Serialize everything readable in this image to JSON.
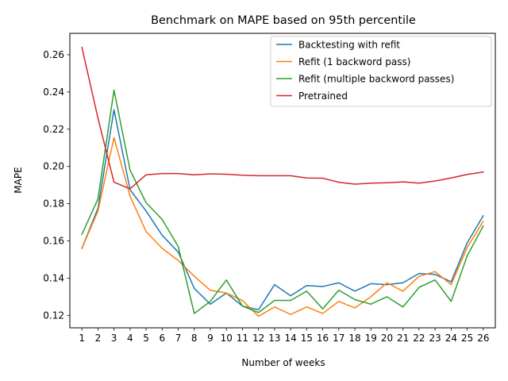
{
  "chart_data": {
    "type": "line",
    "title": "Benchmark on MAPE based on 95th percentile",
    "xlabel": "Number of weeks",
    "ylabel": "MAPE",
    "x": [
      1,
      2,
      3,
      4,
      5,
      6,
      7,
      8,
      9,
      10,
      11,
      12,
      13,
      14,
      15,
      16,
      17,
      18,
      19,
      20,
      21,
      22,
      23,
      24,
      25,
      26
    ],
    "xlim": [
      0.25,
      26.75
    ],
    "ylim": [
      0.1133,
      0.2715
    ],
    "yticks": [
      0.12,
      0.14,
      0.16,
      0.18,
      0.2,
      0.22,
      0.24,
      0.26
    ],
    "ytick_labels": [
      "0.12",
      "0.14",
      "0.16",
      "0.18",
      "0.20",
      "0.22",
      "0.24",
      "0.26"
    ],
    "grid": false,
    "legend_position": "top-right",
    "series": [
      {
        "name": "Backtesting with refit",
        "color": "#1f77b4",
        "values": [
          0.156,
          0.1775,
          0.2305,
          0.1875,
          0.176,
          0.163,
          0.154,
          0.1345,
          0.126,
          0.132,
          0.125,
          0.123,
          0.1365,
          0.1305,
          0.136,
          0.1355,
          0.1375,
          0.133,
          0.137,
          0.1365,
          0.1375,
          0.1425,
          0.142,
          0.138,
          0.159,
          0.1735
        ]
      },
      {
        "name": "Refit (1 backword pass)",
        "color": "#ff7f0e",
        "values": [
          0.156,
          0.176,
          0.2155,
          0.184,
          0.165,
          0.156,
          0.1495,
          0.141,
          0.1335,
          0.132,
          0.128,
          0.1195,
          0.1245,
          0.1205,
          0.1245,
          0.121,
          0.1275,
          0.124,
          0.13,
          0.1375,
          0.133,
          0.141,
          0.1435,
          0.1365,
          0.1565,
          0.1705
        ]
      },
      {
        "name": "Refit (multiple backword passes)",
        "color": "#2ca02c",
        "values": [
          0.1635,
          0.1825,
          0.241,
          0.198,
          0.1805,
          0.1715,
          0.157,
          0.121,
          0.1275,
          0.139,
          0.125,
          0.1215,
          0.128,
          0.128,
          0.133,
          0.1235,
          0.1335,
          0.1285,
          0.126,
          0.13,
          0.1245,
          0.135,
          0.139,
          0.1275,
          0.152,
          0.168
        ]
      },
      {
        "name": "Pretrained",
        "color": "#d62728",
        "values": [
          0.264,
          0.226,
          0.1915,
          0.188,
          0.1955,
          0.1962,
          0.1962,
          0.1955,
          0.196,
          0.1958,
          0.1953,
          0.195,
          0.195,
          0.195,
          0.1938,
          0.1937,
          0.1915,
          0.1905,
          0.191,
          0.1912,
          0.1917,
          0.191,
          0.1922,
          0.1938,
          0.1957,
          0.197
        ]
      }
    ]
  }
}
